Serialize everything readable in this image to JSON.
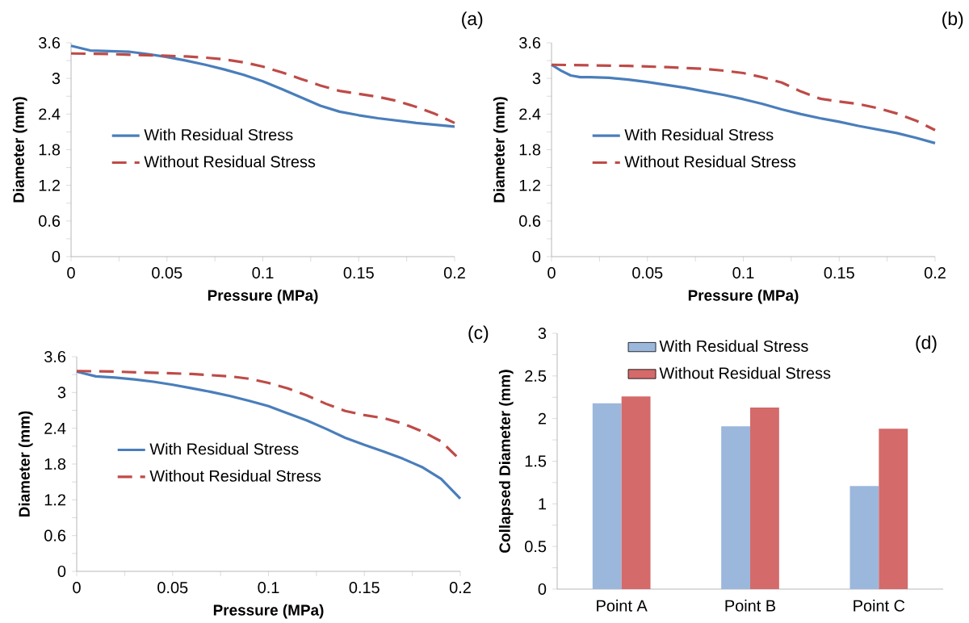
{
  "chart_data": [
    {
      "type": "line",
      "title": "(a)",
      "xlabel": "Pressure (MPa)",
      "ylabel": "Diameter (mm)",
      "xlim": [
        0,
        0.2
      ],
      "ylim": [
        0,
        3.6
      ],
      "xticks": [
        0,
        0.05,
        0.1,
        0.15,
        0.2
      ],
      "yticks": [
        0,
        0.6,
        1.2,
        1.8,
        2.4,
        3,
        3.6
      ],
      "legend": "left",
      "series": [
        {
          "name": "With Residual Stress",
          "color": "#4a7ebb",
          "line_style": "solid",
          "x": [
            0,
            0.01,
            0.02,
            0.03,
            0.04,
            0.05,
            0.06,
            0.07,
            0.08,
            0.09,
            0.1,
            0.11,
            0.12,
            0.13,
            0.14,
            0.15,
            0.16,
            0.17,
            0.18,
            0.19,
            0.2
          ],
          "values": [
            3.55,
            3.47,
            3.46,
            3.45,
            3.41,
            3.36,
            3.3,
            3.23,
            3.15,
            3.06,
            2.95,
            2.82,
            2.68,
            2.54,
            2.44,
            2.38,
            2.33,
            2.29,
            2.25,
            2.22,
            2.19
          ]
        },
        {
          "name": "Without Residual Stress",
          "color": "#be4b48",
          "line_style": "dashed",
          "x": [
            0,
            0.02,
            0.04,
            0.05,
            0.06,
            0.07,
            0.08,
            0.09,
            0.1,
            0.11,
            0.12,
            0.13,
            0.14,
            0.15,
            0.16,
            0.17,
            0.18,
            0.19,
            0.2
          ],
          "values": [
            3.42,
            3.41,
            3.39,
            3.38,
            3.37,
            3.35,
            3.32,
            3.27,
            3.2,
            3.1,
            2.99,
            2.88,
            2.79,
            2.74,
            2.69,
            2.62,
            2.52,
            2.4,
            2.25
          ]
        }
      ]
    },
    {
      "type": "line",
      "title": "(b)",
      "xlabel": "Pressure (MPa)",
      "ylabel": "Diameter (mm)",
      "xlim": [
        0,
        0.2
      ],
      "ylim": [
        0,
        3.6
      ],
      "xticks": [
        0,
        0.05,
        0.1,
        0.15,
        0.2
      ],
      "yticks": [
        0,
        0.6,
        1.2,
        1.8,
        2.4,
        3,
        3.6
      ],
      "legend": "left",
      "series": [
        {
          "name": "With Residual Stress",
          "color": "#4a7ebb",
          "line_style": "solid",
          "x": [
            0,
            0.005,
            0.01,
            0.015,
            0.02,
            0.03,
            0.04,
            0.05,
            0.06,
            0.07,
            0.08,
            0.09,
            0.1,
            0.11,
            0.12,
            0.13,
            0.14,
            0.15,
            0.16,
            0.17,
            0.18,
            0.19,
            0.2
          ],
          "values": [
            3.23,
            3.13,
            3.05,
            3.02,
            3.02,
            3.01,
            2.98,
            2.94,
            2.89,
            2.84,
            2.78,
            2.72,
            2.65,
            2.57,
            2.48,
            2.4,
            2.33,
            2.27,
            2.2,
            2.14,
            2.08,
            2.0,
            1.91
          ]
        },
        {
          "name": "Without Residual Stress",
          "color": "#be4b48",
          "line_style": "dashed",
          "x": [
            0,
            0.02,
            0.04,
            0.06,
            0.08,
            0.09,
            0.1,
            0.11,
            0.12,
            0.13,
            0.14,
            0.15,
            0.16,
            0.17,
            0.18,
            0.19,
            0.2
          ],
          "values": [
            3.23,
            3.22,
            3.21,
            3.19,
            3.16,
            3.13,
            3.09,
            3.02,
            2.93,
            2.78,
            2.66,
            2.61,
            2.57,
            2.5,
            2.41,
            2.29,
            2.13
          ]
        }
      ]
    },
    {
      "type": "line",
      "title": "(c)",
      "xlabel": "Pressure (MPa)",
      "ylabel": "Diameter (mm)",
      "xlim": [
        0,
        0.2
      ],
      "ylim": [
        0,
        3.6
      ],
      "xticks": [
        0,
        0.05,
        0.1,
        0.15,
        0.2
      ],
      "yticks": [
        0,
        0.6,
        1.2,
        1.8,
        2.4,
        3,
        3.6
      ],
      "legend": "left",
      "series": [
        {
          "name": "With Residual Stress",
          "color": "#4a7ebb",
          "line_style": "solid",
          "x": [
            0,
            0.01,
            0.02,
            0.03,
            0.04,
            0.05,
            0.06,
            0.07,
            0.08,
            0.09,
            0.1,
            0.11,
            0.12,
            0.13,
            0.14,
            0.15,
            0.16,
            0.17,
            0.18,
            0.19,
            0.2
          ],
          "values": [
            3.35,
            3.27,
            3.25,
            3.22,
            3.18,
            3.13,
            3.07,
            3.01,
            2.94,
            2.86,
            2.77,
            2.65,
            2.53,
            2.39,
            2.24,
            2.12,
            2.01,
            1.89,
            1.75,
            1.55,
            1.22
          ]
        },
        {
          "name": "Without Residual Stress",
          "color": "#be4b48",
          "line_style": "dashed",
          "x": [
            0,
            0.02,
            0.04,
            0.06,
            0.08,
            0.09,
            0.1,
            0.11,
            0.12,
            0.13,
            0.14,
            0.15,
            0.16,
            0.17,
            0.18,
            0.19,
            0.198
          ],
          "values": [
            3.36,
            3.35,
            3.33,
            3.31,
            3.27,
            3.23,
            3.16,
            3.07,
            2.95,
            2.81,
            2.69,
            2.62,
            2.57,
            2.48,
            2.35,
            2.18,
            1.93
          ]
        }
      ]
    },
    {
      "type": "bar",
      "title": "(d)",
      "ylabel": "Collapsed Diameter (mm)",
      "categories": [
        "Point A",
        "Point B",
        "Point C"
      ],
      "ylim": [
        0,
        3
      ],
      "yticks": [
        0,
        0.5,
        1,
        1.5,
        2,
        2.5,
        3
      ],
      "legend": "top",
      "series": [
        {
          "name": "With Residual Stress",
          "color": "#9bb7dc",
          "values": [
            2.18,
            1.91,
            1.21
          ]
        },
        {
          "name": "Without Residual Stress",
          "color": "#d46a6a",
          "values": [
            2.26,
            2.13,
            1.88
          ]
        }
      ]
    }
  ]
}
